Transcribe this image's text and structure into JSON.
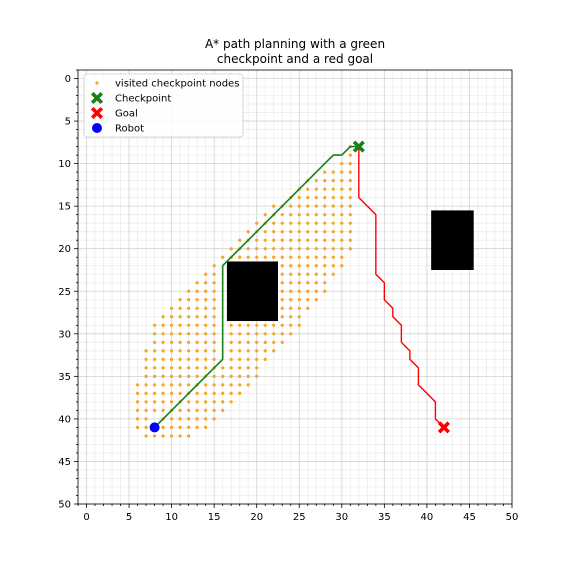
{
  "chart_data": {
    "type": "scatter",
    "title_lines": [
      "A* path planning with a green",
      "checkpoint and a red goal"
    ],
    "xlabel": "",
    "ylabel": "",
    "xlim": [
      -1,
      50
    ],
    "ylim": [
      50,
      -1
    ],
    "y_inverted": true,
    "x_ticks": [
      0,
      5,
      10,
      15,
      20,
      25,
      30,
      35,
      40,
      45,
      50
    ],
    "y_ticks": [
      0,
      5,
      10,
      15,
      20,
      25,
      30,
      35,
      40,
      45,
      50
    ],
    "minor_ticks": 1,
    "grid": true,
    "legend_placement": "upper-left",
    "legend": [
      {
        "label": "visited checkpoint nodes",
        "marker": "dot",
        "color": "#f5a623"
      },
      {
        "label": "Checkpoint",
        "marker": "x-bold",
        "color": "#1a7f1a"
      },
      {
        "label": "Goal",
        "marker": "x-bold",
        "color": "#ff0000"
      },
      {
        "label": "Robot",
        "marker": "circle",
        "color": "#0000ff"
      }
    ],
    "obstacles": [
      {
        "x": [
          16.5,
          22.5
        ],
        "y": [
          21.5,
          28.5
        ],
        "color": "#000000"
      },
      {
        "x": [
          40.5,
          45.5
        ],
        "y": [
          15.5,
          22.5
        ],
        "color": "#000000"
      }
    ],
    "visited_rows": [
      {
        "y": 8,
        "x": [
          31
        ]
      },
      {
        "y": 9,
        "x": [
          31
        ]
      },
      {
        "y": 10,
        "x": [
          30,
          31
        ]
      },
      {
        "y": 11,
        "x": [
          28,
          29,
          30,
          31
        ]
      },
      {
        "y": 12,
        "x": [
          26,
          27,
          28,
          29,
          30,
          31
        ]
      },
      {
        "y": 13,
        "x": [
          25,
          26,
          27,
          28,
          29,
          30,
          31
        ]
      },
      {
        "y": 14,
        "x": [
          24,
          25,
          26,
          27,
          28,
          29,
          30,
          31
        ]
      },
      {
        "y": 15,
        "x": [
          22,
          23,
          24,
          25,
          26,
          27,
          28,
          29,
          30,
          31
        ]
      },
      {
        "y": 16,
        "x": [
          21,
          22,
          23,
          24,
          25,
          26,
          27,
          28,
          29,
          30,
          31
        ]
      },
      {
        "y": 17,
        "x": [
          20,
          21,
          22,
          23,
          24,
          25,
          26,
          27,
          28,
          29,
          30,
          31
        ]
      },
      {
        "y": 18,
        "x": [
          19,
          20,
          21,
          22,
          23,
          24,
          25,
          26,
          27,
          28,
          29,
          30,
          31
        ]
      },
      {
        "y": 19,
        "x": [
          18,
          19,
          20,
          21,
          22,
          23,
          24,
          25,
          26,
          27,
          28,
          29,
          30,
          31
        ]
      },
      {
        "y": 20,
        "x": [
          17,
          18,
          19,
          20,
          21,
          22,
          23,
          24,
          25,
          26,
          27,
          28,
          29,
          30,
          31
        ]
      },
      {
        "y": 21,
        "x": [
          16,
          17,
          18,
          19,
          20,
          21,
          22,
          23,
          24,
          25,
          26,
          27,
          28,
          29,
          30
        ]
      },
      {
        "y": 22,
        "x": [
          15,
          23,
          24,
          25,
          26,
          27,
          28,
          29,
          30
        ]
      },
      {
        "y": 23,
        "x": [
          14,
          15,
          23,
          24,
          25,
          26,
          27,
          28,
          29
        ]
      },
      {
        "y": 24,
        "x": [
          13,
          14,
          15,
          23,
          24,
          25,
          26,
          27,
          28
        ]
      },
      {
        "y": 25,
        "x": [
          12,
          13,
          14,
          15,
          23,
          24,
          25,
          26,
          27,
          28
        ]
      },
      {
        "y": 26,
        "x": [
          11,
          12,
          13,
          14,
          15,
          23,
          24,
          25,
          26,
          27
        ]
      },
      {
        "y": 27,
        "x": [
          10,
          11,
          12,
          13,
          14,
          15,
          23,
          24,
          25,
          26
        ]
      },
      {
        "y": 28,
        "x": [
          9,
          10,
          11,
          12,
          13,
          14,
          15,
          23,
          24,
          25
        ]
      },
      {
        "y": 29,
        "x": [
          8,
          9,
          10,
          11,
          12,
          13,
          14,
          15,
          17,
          18,
          19,
          20,
          21,
          22,
          23,
          24,
          25
        ]
      },
      {
        "y": 30,
        "x": [
          8,
          9,
          10,
          11,
          12,
          13,
          14,
          15,
          17,
          18,
          19,
          20,
          21,
          22,
          23,
          24
        ]
      },
      {
        "y": 31,
        "x": [
          8,
          9,
          10,
          11,
          12,
          13,
          14,
          15,
          17,
          18,
          19,
          20,
          21,
          22,
          23
        ]
      },
      {
        "y": 32,
        "x": [
          7,
          8,
          9,
          10,
          11,
          12,
          13,
          14,
          15,
          17,
          18,
          19,
          20,
          21,
          22
        ]
      },
      {
        "y": 33,
        "x": [
          7,
          8,
          9,
          10,
          11,
          12,
          13,
          14,
          15,
          17,
          18,
          19,
          20,
          21
        ]
      },
      {
        "y": 34,
        "x": [
          7,
          8,
          9,
          10,
          11,
          12,
          13,
          14,
          15,
          16,
          17,
          18,
          19,
          20
        ]
      },
      {
        "y": 35,
        "x": [
          7,
          8,
          9,
          10,
          11,
          12,
          13,
          14,
          15,
          16,
          17,
          18,
          19,
          20
        ]
      },
      {
        "y": 36,
        "x": [
          6,
          7,
          8,
          9,
          10,
          11,
          12,
          13,
          14,
          15,
          16,
          17,
          18,
          19
        ]
      },
      {
        "y": 37,
        "x": [
          6,
          7,
          8,
          9,
          10,
          11,
          12,
          13,
          14,
          15,
          16,
          17,
          18
        ]
      },
      {
        "y": 38,
        "x": [
          6,
          7,
          8,
          9,
          10,
          11,
          12,
          13,
          14,
          15,
          16,
          17
        ]
      },
      {
        "y": 39,
        "x": [
          6,
          7,
          8,
          9,
          10,
          11,
          12,
          13,
          14,
          15,
          16
        ]
      },
      {
        "y": 40,
        "x": [
          6,
          7,
          9,
          10,
          11,
          12,
          13,
          14,
          15
        ]
      },
      {
        "y": 41,
        "x": [
          6,
          7,
          9,
          10,
          11,
          12,
          13,
          14
        ]
      },
      {
        "y": 42,
        "x": [
          7,
          8,
          9,
          10,
          11,
          12
        ]
      }
    ],
    "green_path": [
      [
        8,
        41
      ],
      [
        16,
        33
      ],
      [
        16,
        22
      ],
      [
        29,
        9
      ],
      [
        30,
        9
      ],
      [
        31,
        8
      ],
      [
        32,
        8
      ]
    ],
    "red_path": [
      [
        32,
        8
      ],
      [
        32,
        14
      ],
      [
        34,
        16
      ],
      [
        34,
        23
      ],
      [
        35,
        24
      ],
      [
        35,
        26
      ],
      [
        36,
        27
      ],
      [
        36,
        28
      ],
      [
        37,
        29
      ],
      [
        37,
        31
      ],
      [
        38,
        32
      ],
      [
        38,
        33
      ],
      [
        39,
        34
      ],
      [
        39,
        36
      ],
      [
        41,
        38
      ],
      [
        41,
        40
      ],
      [
        42,
        41
      ]
    ],
    "checkpoint": {
      "x": 32,
      "y": 8,
      "color": "#1a7f1a"
    },
    "goal": {
      "x": 42,
      "y": 41,
      "color": "#ff0000"
    },
    "robot": {
      "x": 8,
      "y": 41,
      "color": "#0000ff"
    },
    "colors": {
      "visited": "#f5a623",
      "green_path": "#1a7f1a",
      "red_path": "#ff0000"
    }
  }
}
